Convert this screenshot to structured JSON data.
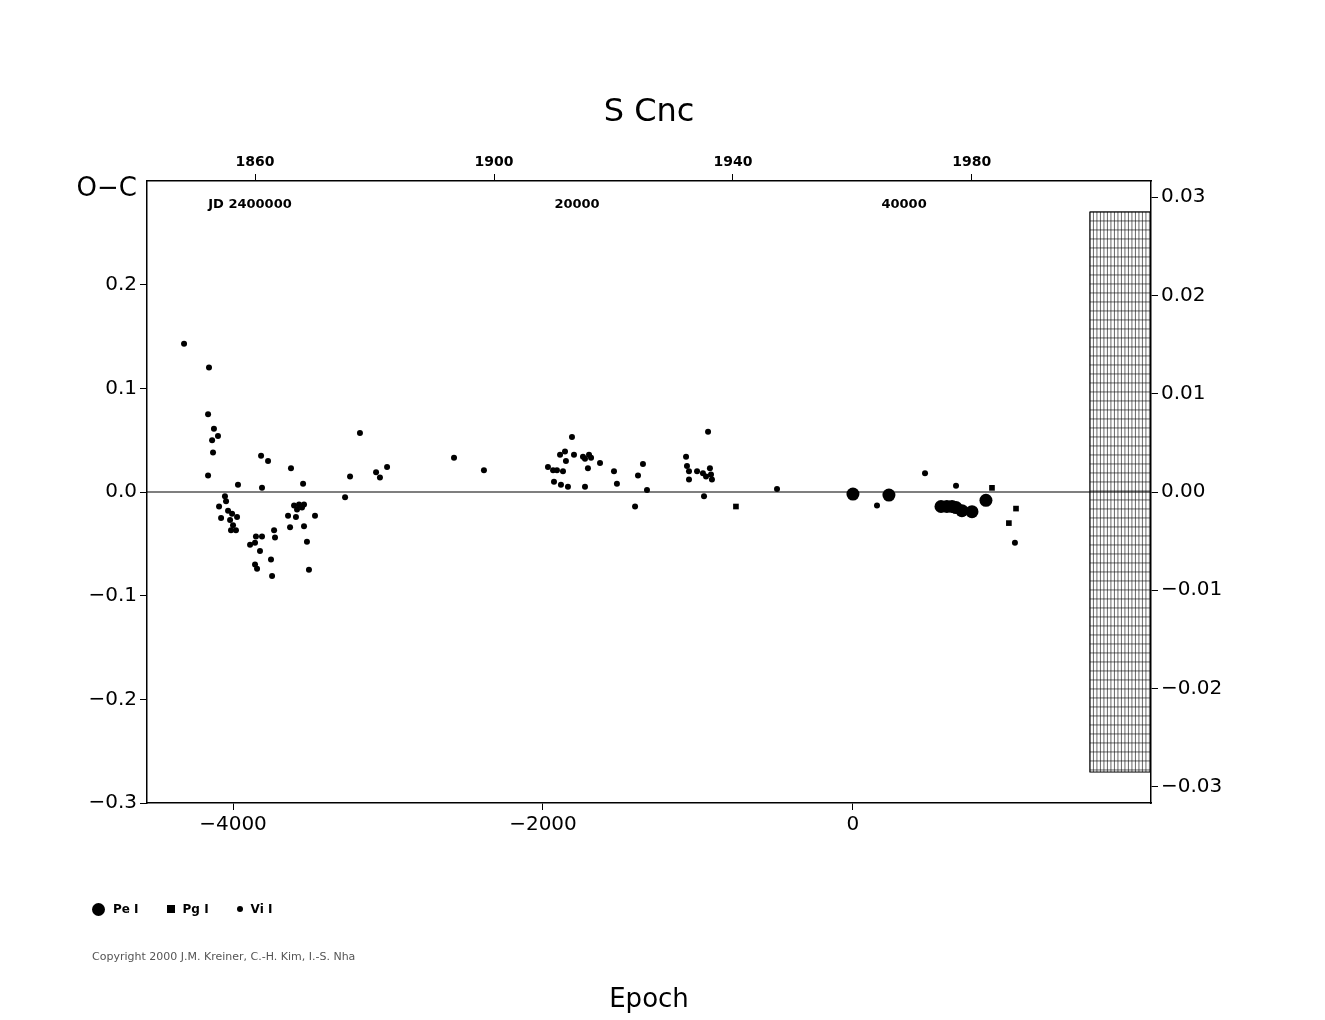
{
  "chart_data": {
    "type": "scatter",
    "title": "S Cnc",
    "xlabel": "Epoch",
    "ylabel": "O−C",
    "xlim": [
      -4555,
      1923
    ],
    "xticks": [
      {
        "value": -4000,
        "label": "−4000"
      },
      {
        "value": -2000,
        "label": "−2000"
      },
      0
    ],
    "x2lim": [
      1841.9,
      2010.0
    ],
    "x2ticks": [
      1860,
      1900,
      1940,
      1980
    ],
    "jdlim": [
      2393700,
      2455100
    ],
    "jd_labels": [
      {
        "value": 2400000,
        "label": "JD 2400000"
      },
      {
        "value": 2420000,
        "label": "20000"
      },
      {
        "value": 2440000,
        "label": "40000"
      }
    ],
    "ylim": [
      -0.3,
      0.3
    ],
    "yticks": [
      {
        "value": -0.3,
        "label": "−0.3"
      },
      {
        "value": -0.2,
        "label": "−0.2"
      },
      {
        "value": -0.1,
        "label": "−0.1"
      },
      {
        "value": 0,
        "label": "0.0"
      },
      {
        "value": 0.1,
        "label": "0.1"
      },
      {
        "value": 0.2,
        "label": "0.2"
      }
    ],
    "y2lim": [
      -0.03165,
      0.03165
    ],
    "y2ticks": [
      {
        "value": -0.03,
        "label": "−0.03"
      },
      {
        "value": -0.02,
        "label": "−0.02"
      },
      {
        "value": -0.01,
        "label": "−0.01"
      },
      {
        "value": 0,
        "label": "0.00"
      },
      {
        "value": 0.01,
        "label": "0.01"
      },
      {
        "value": 0.02,
        "label": "0.02"
      },
      {
        "value": 0.03,
        "label": "0.03"
      }
    ],
    "reference_y": 0,
    "shaded_region": {
      "x": [
        1529,
        1923
      ],
      "y2": [
        -0.0285,
        0.0285
      ]
    },
    "grid": false,
    "legend": "bottom",
    "copyright": "Copyright 2000 J.M. Kreiner, C.-H. Kim, I.-S. Nha",
    "series": [
      {
        "name": "Pe I",
        "color": "#000000",
        "marker": "circle",
        "x": [
          0,
          232,
          568,
          606,
          639,
          665,
          703,
          768,
          858
        ],
        "values": [
          -0.002,
          -0.003,
          -0.014,
          -0.014,
          -0.014,
          -0.015,
          -0.018,
          -0.019,
          -0.008
        ]
      },
      {
        "name": "Pg I",
        "color": "#000000",
        "marker": "square",
        "x": [
          -755,
          897,
          1006,
          1052
        ],
        "values": [
          -0.014,
          0.004,
          -0.03,
          -0.016
        ]
      },
      {
        "name": "Vi I",
        "color": "#000000",
        "marker": "dot",
        "x": [
          -4316,
          -4155,
          -4161,
          -4123,
          -4097,
          -4135,
          -4129,
          -4161,
          -4052,
          -4045,
          -4090,
          -4077,
          -4032,
          -4006,
          -4019,
          -4000,
          -4013,
          -3981,
          -3974,
          -3968,
          -3890,
          -3858,
          -3852,
          -3858,
          -3845,
          -3826,
          -3813,
          -3819,
          -3813,
          -3774,
          -3748,
          -3755,
          -3735,
          -3729,
          -3645,
          -3632,
          -3626,
          -3606,
          -3594,
          -3587,
          -3574,
          -3555,
          -3542,
          -3548,
          -3542,
          -3523,
          -3510,
          -3471,
          -3277,
          -3245,
          -3181,
          -3077,
          -3052,
          -3006,
          -2574,
          -2381,
          -1968,
          -1935,
          -1929,
          -1910,
          -1890,
          -1884,
          -1871,
          -1858,
          -1852,
          -1839,
          -1813,
          -1800,
          -1742,
          -1729,
          -1729,
          -1710,
          -1703,
          -1690,
          -1632,
          -1542,
          -1523,
          -1406,
          -1387,
          -1355,
          -1329,
          -1077,
          -1071,
          -1058,
          -1058,
          -1006,
          -968,
          -961,
          -948,
          -935,
          -923,
          -916,
          -910,
          -490,
          155,
          465,
          665,
          1045
        ],
        "values": [
          0.143,
          0.12,
          0.075,
          0.061,
          0.054,
          0.05,
          0.038,
          0.016,
          -0.004,
          -0.009,
          -0.014,
          -0.025,
          -0.018,
          -0.021,
          -0.027,
          -0.032,
          -0.037,
          -0.037,
          -0.024,
          0.007,
          -0.051,
          -0.049,
          -0.043,
          -0.07,
          -0.074,
          -0.057,
          -0.043,
          0.035,
          0.004,
          0.03,
          -0.081,
          -0.065,
          -0.037,
          -0.044,
          -0.023,
          -0.034,
          0.023,
          -0.013,
          -0.024,
          -0.017,
          -0.012,
          -0.015,
          -0.012,
          0.008,
          -0.033,
          -0.048,
          -0.075,
          -0.023,
          -0.005,
          0.015,
          0.057,
          0.019,
          0.014,
          0.024,
          0.033,
          0.021,
          0.024,
          0.021,
          0.01,
          0.021,
          0.036,
          0.007,
          0.02,
          0.039,
          0.03,
          0.005,
          0.053,
          0.036,
          0.034,
          0.032,
          0.005,
          0.023,
          0.036,
          0.033,
          0.028,
          0.02,
          0.008,
          -0.014,
          0.016,
          0.027,
          0.002,
          0.034,
          0.025,
          0.02,
          0.012,
          0.02,
          0.018,
          -0.004,
          0.015,
          0.058,
          0.023,
          0.017,
          0.012,
          0.003,
          -0.013,
          0.018,
          0.006,
          -0.049
        ]
      }
    ]
  }
}
